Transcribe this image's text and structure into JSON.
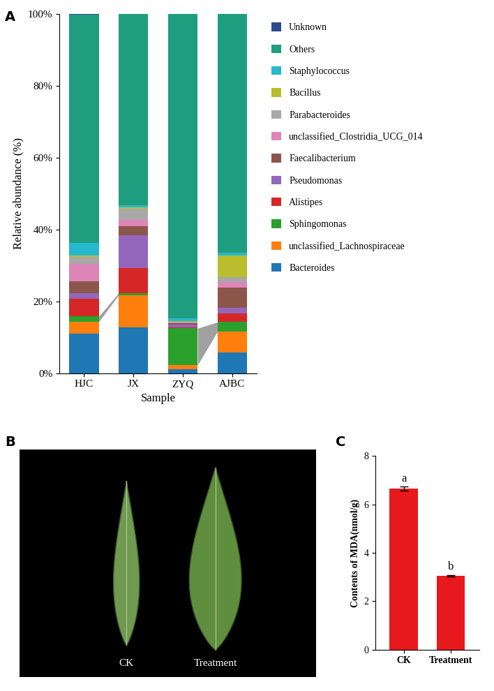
{
  "chart_data": [
    {
      "type": "bar",
      "panel": "A",
      "stacked": true,
      "x_label": "Sample",
      "y_label": "Relative abundance (%)",
      "categories": [
        "HJC",
        "JX",
        "ZYQ",
        "AJBC"
      ],
      "ylim": [
        0,
        100
      ],
      "yticks": [
        {
          "value": 0,
          "label": "0%"
        },
        {
          "value": 20,
          "label": "20%"
        },
        {
          "value": 40,
          "label": "40%"
        },
        {
          "value": 60,
          "label": "60%"
        },
        {
          "value": 80,
          "label": "80%"
        },
        {
          "value": 100,
          "label": "100%"
        }
      ],
      "legend": "upper left",
      "series": [
        {
          "name": "Bacteroides",
          "color": "#1f77b4",
          "values": [
            11.0,
            12.7,
            1.0,
            5.7
          ]
        },
        {
          "name": "unclassified_Lachnospiraceae",
          "color": "#ff7f0e",
          "values": [
            3.3,
            9.0,
            1.3,
            5.8
          ]
        },
        {
          "name": "Sphingomonas",
          "color": "#2ca02c",
          "values": [
            1.5,
            0.6,
            10.2,
            2.7
          ]
        },
        {
          "name": "Alistipes",
          "color": "#d62728",
          "values": [
            5.0,
            7.0,
            0.3,
            2.5
          ]
        },
        {
          "name": "Pseudomonas",
          "color": "#9467bd",
          "values": [
            1.5,
            9.0,
            0.8,
            1.5
          ]
        },
        {
          "name": "Faecalibacterium",
          "color": "#8c564b",
          "values": [
            3.3,
            2.7,
            0.3,
            5.6
          ]
        },
        {
          "name": "unclassified_Clostridia_UCG_014",
          "color": "#de85b8",
          "values": [
            4.8,
            1.6,
            0.2,
            1.5
          ]
        },
        {
          "name": "Parabacteroides",
          "color": "#a8a8a8",
          "values": [
            2.0,
            3.2,
            0.2,
            1.5
          ]
        },
        {
          "name": "Bacillus",
          "color": "#b9bd2e",
          "values": [
            0.3,
            0.3,
            0.1,
            6.0
          ]
        },
        {
          "name": "Staphylococcus",
          "color": "#25b8cf",
          "values": [
            3.5,
            0.6,
            0.9,
            0.7
          ]
        },
        {
          "name": "Others",
          "color": "#1f9e7f",
          "values": [
            63.5,
            53.2,
            84.6,
            66.4
          ]
        },
        {
          "name": "Unknown",
          "color": "#2b4a8b",
          "values": [
            0.3,
            0.1,
            0.1,
            0.1
          ]
        }
      ]
    },
    {
      "type": "image",
      "panel": "B",
      "categories": [
        "CK",
        "Treatment"
      ]
    },
    {
      "type": "bar",
      "panel": "C",
      "y_label": "Contents of MDA(nmol/g)",
      "categories": [
        "CK",
        "Treatment"
      ],
      "values": [
        6.65,
        3.05
      ],
      "errors": [
        0.08,
        0.03
      ],
      "annotations": [
        "a",
        "b"
      ],
      "color": "#e8191c",
      "ylim": [
        0,
        8
      ],
      "yticks": [
        0,
        2,
        4,
        6,
        8
      ]
    }
  ]
}
